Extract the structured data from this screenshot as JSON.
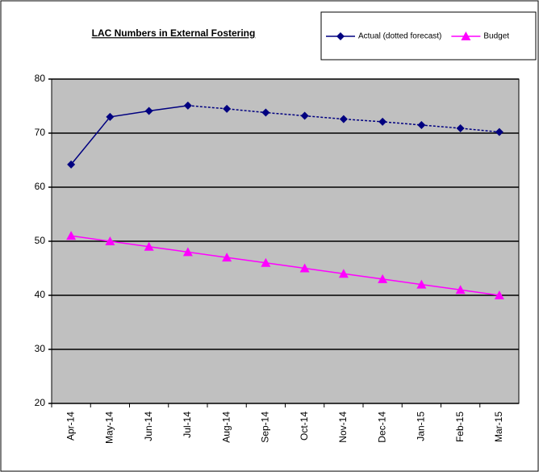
{
  "chart_data": {
    "type": "line",
    "title": "LAC Numbers in External Fostering",
    "categories": [
      "Apr-14",
      "May-14",
      "Jun-14",
      "Jul-14",
      "Aug-14",
      "Sep-14",
      "Oct-14",
      "Nov-14",
      "Dec-14",
      "Jan-15",
      "Feb-15",
      "Mar-15"
    ],
    "series": [
      {
        "name": "Actual (dotted forecast)",
        "color": "#000080",
        "marker": "diamond",
        "dashed_from_index": 3,
        "values": [
          64.2,
          73,
          74.1,
          75.1,
          74.5,
          73.8,
          73.2,
          72.6,
          72.1,
          71.5,
          70.9,
          70.2
        ]
      },
      {
        "name": "Budget",
        "color": "#ff00ff",
        "marker": "triangle",
        "values": [
          51,
          50,
          49,
          48,
          47,
          46,
          45,
          44,
          43,
          42,
          41,
          40
        ]
      }
    ],
    "ylim": [
      20,
      80
    ],
    "yticks": [
      20,
      30,
      40,
      50,
      60,
      70,
      80
    ],
    "grid": true,
    "legend": "top-right"
  }
}
